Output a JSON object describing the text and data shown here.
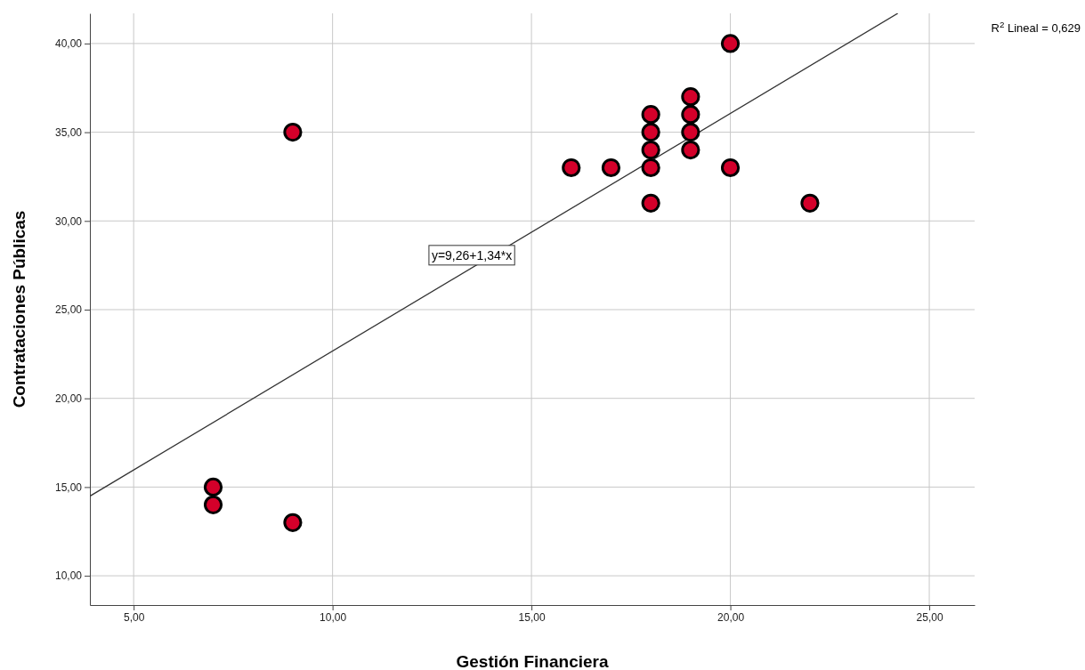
{
  "chart_data": {
    "type": "scatter",
    "xlabel": "Gestión Financiera",
    "ylabel": "Contrataciones Públicas",
    "xlim": [
      3.9,
      26.14
    ],
    "ylim": [
      8.35,
      41.7
    ],
    "xticks": [
      {
        "value": 5,
        "label": "5,00"
      },
      {
        "value": 10,
        "label": "10,00"
      },
      {
        "value": 15,
        "label": "15,00"
      },
      {
        "value": 20,
        "label": "20,00"
      },
      {
        "value": 25,
        "label": "25,00"
      }
    ],
    "yticks": [
      {
        "value": 10,
        "label": "10,00"
      },
      {
        "value": 15,
        "label": "15,00"
      },
      {
        "value": 20,
        "label": "20,00"
      },
      {
        "value": 25,
        "label": "25,00"
      },
      {
        "value": 30,
        "label": "30,00"
      },
      {
        "value": 35,
        "label": "35,00"
      },
      {
        "value": 40,
        "label": "40,00"
      }
    ],
    "grid": true,
    "series": [
      {
        "marker": "circle",
        "color": "#d4002a",
        "x": [
          7,
          7,
          9,
          9,
          16,
          17,
          18,
          18,
          18,
          18,
          18,
          19,
          19,
          19,
          19,
          20,
          20,
          22
        ],
        "values": [
          15,
          14,
          13,
          35,
          33,
          33,
          36,
          35,
          34,
          33,
          31,
          37,
          36,
          35,
          34,
          40,
          33,
          31
        ]
      },
      {
        "type": "line",
        "marker": "none",
        "color": "#333333",
        "x": [
          3.9,
          24.2
        ],
        "values": [
          14.49,
          41.69
        ]
      }
    ],
    "annotations": [
      {
        "text": "y=9,26+1,34*x",
        "x": 13.5,
        "y": 27.35
      },
      "R$^{2}$ Lineal = 0,629"
    ]
  }
}
